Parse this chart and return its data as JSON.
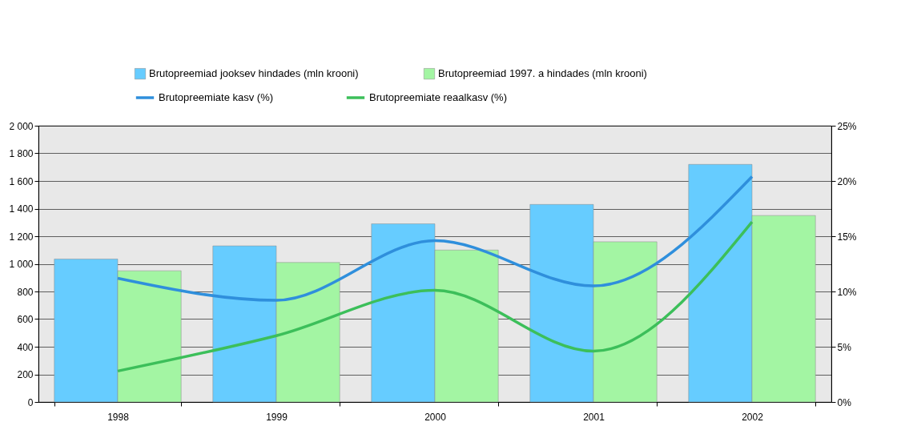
{
  "chart_data": {
    "type": "bar",
    "categories": [
      "1998",
      "1999",
      "2000",
      "2001",
      "2002"
    ],
    "series": [
      {
        "name": "Brutopreemiad jooksev hindades (mln krooni)",
        "color": "#66ccff",
        "values": [
          1035,
          1130,
          1290,
          1430,
          1720
        ]
      },
      {
        "name": "Brutopreemiad 1997. a hindades (mln krooni)",
        "color": "#a3f5a3",
        "values": [
          950,
          1010,
          1100,
          1160,
          1350
        ]
      },
      {
        "name": "Brutopreemiate kasv  (%)",
        "color": "#2f8fdc",
        "type": "line",
        "axis": "y2",
        "values": [
          11.2,
          9.2,
          14.6,
          10.5,
          20.4
        ]
      },
      {
        "name": "Brutopreemiate reaalkasv  (%)",
        "color": "#3cbf5a",
        "type": "line",
        "axis": "y2",
        "values": [
          2.8,
          6.0,
          10.1,
          4.6,
          16.3
        ]
      }
    ],
    "ylim": [
      0,
      2000
    ],
    "yticks": [
      0,
      200,
      400,
      600,
      800,
      {
        "value": 1000,
        "label": "1 000"
      },
      {
        "value": 1200,
        "label": "1 200"
      },
      {
        "value": 1400,
        "label": "1 400"
      },
      {
        "value": 1600,
        "label": "1 600"
      },
      {
        "value": 1800,
        "label": "1 800"
      },
      {
        "value": 2000,
        "label": "2 000"
      }
    ],
    "y2lim": [
      0,
      25
    ],
    "y2ticks": [
      {
        "value": 0,
        "label": "0%"
      },
      {
        "value": 5,
        "label": "5%"
      },
      {
        "value": 10,
        "label": "10%"
      },
      {
        "value": 15,
        "label": "15%"
      },
      {
        "value": 20,
        "label": "20%"
      },
      {
        "value": 25,
        "label": "25%"
      }
    ],
    "grid": "y",
    "legend": "top",
    "marker": "none",
    "line_style": "solid"
  }
}
